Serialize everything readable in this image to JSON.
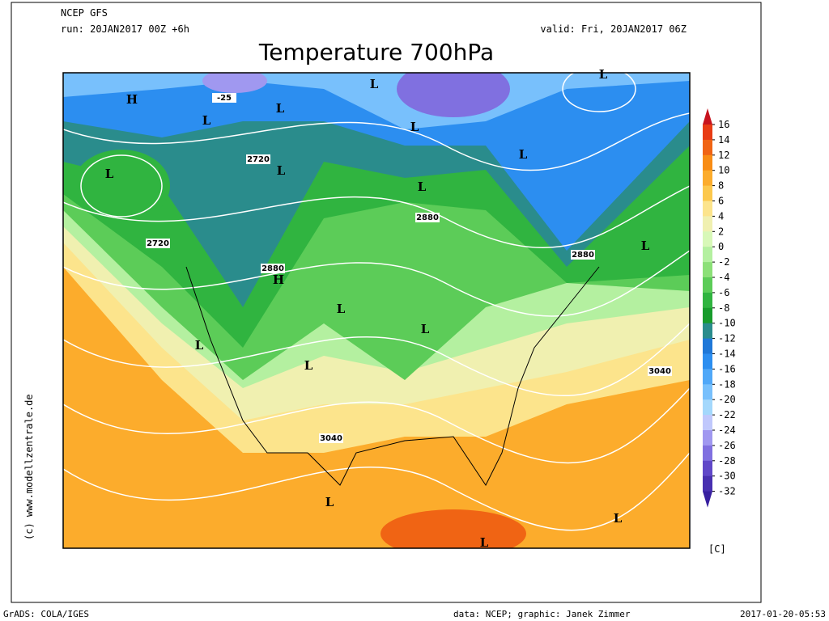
{
  "header": {
    "model": "NCEP GFS",
    "run": "run: 20JAN2017 00Z +6h",
    "valid": "valid: Fri, 20JAN2017 06Z",
    "title": "Temperature 700hPa"
  },
  "map": {
    "markers": [
      "H",
      "L",
      "L",
      "L",
      "L",
      "L",
      "L",
      "L",
      "L",
      "L",
      "L",
      "H",
      "L",
      "L",
      "L",
      "L",
      "L",
      "L",
      "L"
    ],
    "contour_labels": [
      "-25",
      "2720",
      "2720",
      "2880",
      "2880",
      "2880",
      "3040",
      "3040"
    ]
  },
  "colorbar": {
    "ticks": [
      16,
      14,
      12,
      10,
      8,
      6,
      4,
      2,
      0,
      -2,
      -4,
      -6,
      -8,
      -10,
      -12,
      -14,
      -16,
      -18,
      -20,
      -22,
      -24,
      -26,
      -28,
      -30,
      -32
    ],
    "colors": [
      "#c8141e",
      "#e83c14",
      "#f06414",
      "#f88c14",
      "#fcac2c",
      "#fcc84c",
      "#fce48c",
      "#f0f0b0",
      "#d8f8b8",
      "#b4f0a0",
      "#8ce078",
      "#5ccc58",
      "#30b440",
      "#189c2c",
      "#2a8c8c",
      "#1f78d8",
      "#2c8ef0",
      "#50a8f8",
      "#78c0fc",
      "#a4d8fc",
      "#c0c8fc",
      "#a098f0",
      "#8070e0",
      "#6048c8",
      "#4830b0",
      "#3820a0"
    ],
    "unit": "[C]"
  },
  "footer": {
    "copyright": "(c) www.modellzentrale.de",
    "software": "GrADS: COLA/IGES",
    "credits": "data: NCEP; graphic: Janek Zimmer",
    "timestamp": "2017-01-20-05:53"
  }
}
